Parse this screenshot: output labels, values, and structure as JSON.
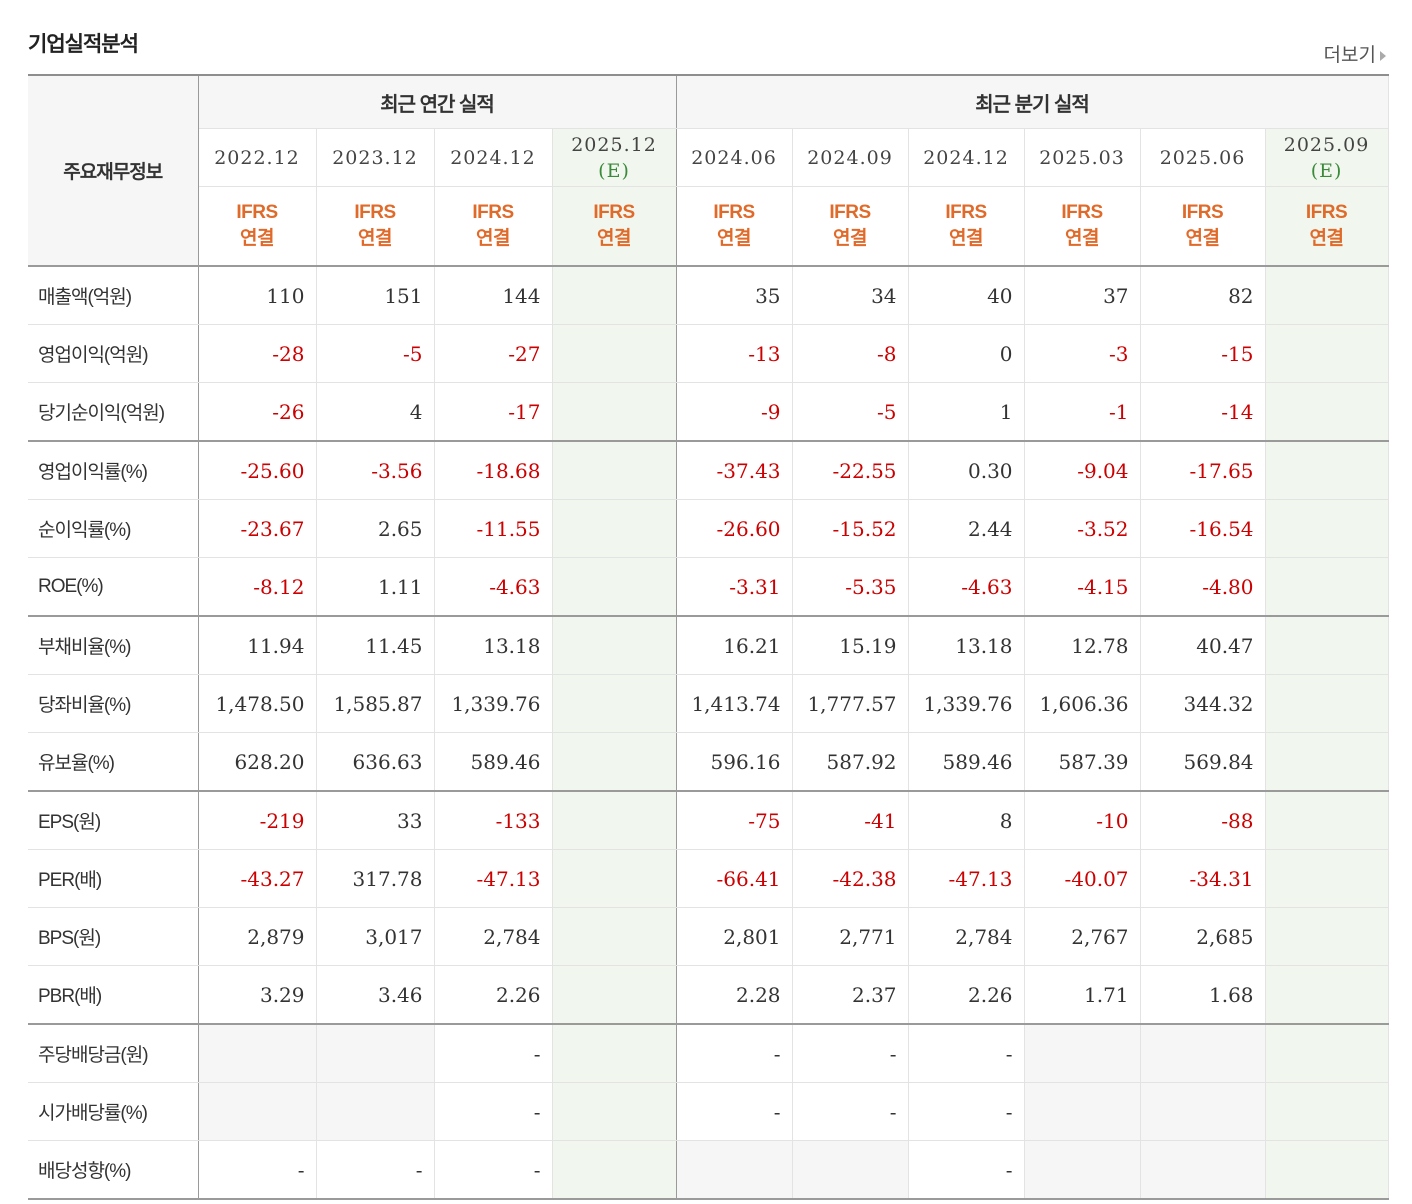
{
  "title": "기업실적분석",
  "more_label": "더보기",
  "header": {
    "row_label": "주요재무정보",
    "annual_label": "최근 연간 실적",
    "quarter_label": "최근 분기 실적",
    "columns": [
      {
        "date": "2022.12",
        "est": "",
        "ifrs": "IFRS",
        "link": "연결"
      },
      {
        "date": "2023.12",
        "est": "",
        "ifrs": "IFRS",
        "link": "연결"
      },
      {
        "date": "2024.12",
        "est": "",
        "ifrs": "IFRS",
        "link": "연결"
      },
      {
        "date": "2025.12",
        "est": "(E)",
        "ifrs": "IFRS",
        "link": "연결"
      },
      {
        "date": "2024.06",
        "est": "",
        "ifrs": "IFRS",
        "link": "연결"
      },
      {
        "date": "2024.09",
        "est": "",
        "ifrs": "IFRS",
        "link": "연결"
      },
      {
        "date": "2024.12",
        "est": "",
        "ifrs": "IFRS",
        "link": "연결"
      },
      {
        "date": "2025.03",
        "est": "",
        "ifrs": "IFRS",
        "link": "연결"
      },
      {
        "date": "2025.06",
        "est": "",
        "ifrs": "IFRS",
        "link": "연결"
      },
      {
        "date": "2025.09",
        "est": "(E)",
        "ifrs": "IFRS",
        "link": "연결"
      }
    ]
  },
  "rows": [
    {
      "label": "매출액(억원)",
      "values": [
        "110",
        "151",
        "144",
        "",
        "35",
        "34",
        "40",
        "37",
        "82",
        ""
      ]
    },
    {
      "label": "영업이익(억원)",
      "values": [
        "-28",
        "-5",
        "-27",
        "",
        "-13",
        "-8",
        "0",
        "-3",
        "-15",
        ""
      ]
    },
    {
      "label": "당기순이익(억원)",
      "values": [
        "-26",
        "4",
        "-17",
        "",
        "-9",
        "-5",
        "1",
        "-1",
        "-14",
        ""
      ]
    },
    {
      "label": "영업이익률(%)",
      "values": [
        "-25.60",
        "-3.56",
        "-18.68",
        "",
        "-37.43",
        "-22.55",
        "0.30",
        "-9.04",
        "-17.65",
        ""
      ]
    },
    {
      "label": "순이익률(%)",
      "values": [
        "-23.67",
        "2.65",
        "-11.55",
        "",
        "-26.60",
        "-15.52",
        "2.44",
        "-3.52",
        "-16.54",
        ""
      ]
    },
    {
      "label": "ROE(%)",
      "values": [
        "-8.12",
        "1.11",
        "-4.63",
        "",
        "-3.31",
        "-5.35",
        "-4.63",
        "-4.15",
        "-4.80",
        ""
      ]
    },
    {
      "label": "부채비율(%)",
      "values": [
        "11.94",
        "11.45",
        "13.18",
        "",
        "16.21",
        "15.19",
        "13.18",
        "12.78",
        "40.47",
        ""
      ]
    },
    {
      "label": "당좌비율(%)",
      "values": [
        "1,478.50",
        "1,585.87",
        "1,339.76",
        "",
        "1,413.74",
        "1,777.57",
        "1,339.76",
        "1,606.36",
        "344.32",
        ""
      ]
    },
    {
      "label": "유보율(%)",
      "values": [
        "628.20",
        "636.63",
        "589.46",
        "",
        "596.16",
        "587.92",
        "589.46",
        "587.39",
        "569.84",
        ""
      ]
    },
    {
      "label": "EPS(원)",
      "values": [
        "-219",
        "33",
        "-133",
        "",
        "-75",
        "-41",
        "8",
        "-10",
        "-88",
        ""
      ]
    },
    {
      "label": "PER(배)",
      "values": [
        "-43.27",
        "317.78",
        "-47.13",
        "",
        "-66.41",
        "-42.38",
        "-47.13",
        "-40.07",
        "-34.31",
        ""
      ]
    },
    {
      "label": "BPS(원)",
      "values": [
        "2,879",
        "3,017",
        "2,784",
        "",
        "2,801",
        "2,771",
        "2,784",
        "2,767",
        "2,685",
        ""
      ]
    },
    {
      "label": "PBR(배)",
      "values": [
        "3.29",
        "3.46",
        "2.26",
        "",
        "2.28",
        "2.37",
        "2.26",
        "1.71",
        "1.68",
        ""
      ]
    },
    {
      "label": "주당배당금(원)",
      "values": [
        "",
        "",
        "-",
        "",
        "-",
        "-",
        "-",
        "",
        "",
        ""
      ]
    },
    {
      "label": "시가배당률(%)",
      "values": [
        "",
        "",
        "-",
        "",
        "-",
        "-",
        "-",
        "",
        "",
        ""
      ]
    },
    {
      "label": "배당성향(%)",
      "values": [
        "-",
        "-",
        "-",
        "",
        "",
        "",
        "-",
        "",
        "",
        ""
      ]
    }
  ]
}
